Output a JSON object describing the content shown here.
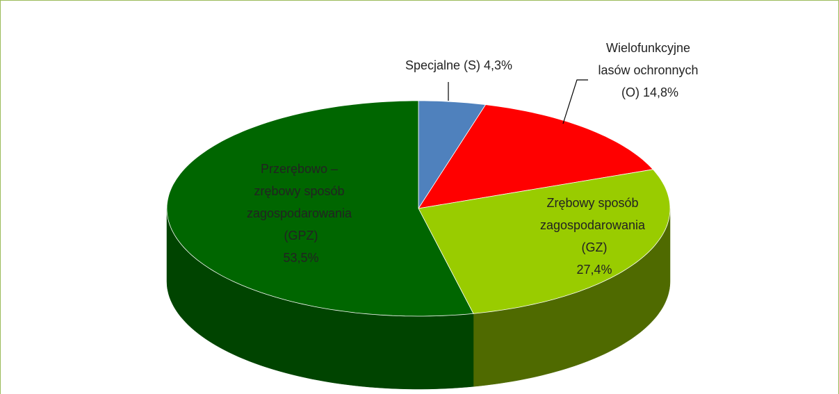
{
  "chart_data": {
    "type": "pie",
    "categories": [
      "Specjalne (S)",
      "Wielofunkcyjne lasów ochronnych (O)",
      "Zrębowy sposób zagospodarowania (GZ)",
      "Przerębowo – zrębowy sposób zagospodarowania (GPZ)"
    ],
    "values": [
      4.3,
      14.8,
      27.4,
      53.5
    ],
    "value_labels": [
      "4,3%",
      "14,8%",
      "27,4%",
      "53,5%"
    ],
    "colors": [
      "#4f81bd",
      "#ff0000",
      "#99cc00",
      "#006600"
    ],
    "side_colors": [
      "#3a6190",
      "#b30000",
      "#4f6a00",
      "#004400"
    ]
  }
}
